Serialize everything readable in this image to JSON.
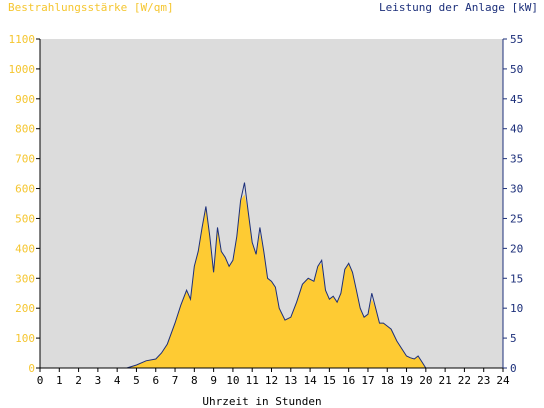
{
  "colors": {
    "plot_bg": "#dcdcdc",
    "area_fill": "#fecb33",
    "power_line": "#1c2f7a",
    "left_axis_text": "#f5c630",
    "right_axis_text": "#1c2f7a"
  },
  "chart_data": {
    "type": "area",
    "title_left": "Bestrahlungsstärke [W/qm]",
    "title_right": "Leistung der Anlage [kW]",
    "xlabel": "Uhrzeit in Stunden",
    "xlim": [
      0,
      24
    ],
    "ylim_left": [
      0,
      1100
    ],
    "ylim_right": [
      0,
      55
    ],
    "x_ticks": [
      "0",
      "1",
      "2",
      "3",
      "4",
      "5",
      "6",
      "7",
      "8",
      "9",
      "10",
      "11",
      "12",
      "13",
      "14",
      "15",
      "16",
      "17",
      "18",
      "19",
      "20",
      "21",
      "22",
      "23",
      "24"
    ],
    "y_left_ticks": [
      "0",
      "100",
      "200",
      "300",
      "400",
      "500",
      "600",
      "700",
      "800",
      "900",
      "1000",
      "1100"
    ],
    "y_right_ticks": [
      "0",
      "5",
      "10",
      "15",
      "20",
      "25",
      "30",
      "35",
      "40",
      "45",
      "50",
      "55"
    ],
    "grid": false,
    "series": [
      {
        "name": "Bestrahlungsstärke",
        "axis": "left",
        "x": [
          0,
          4.5,
          5,
          5.5,
          6,
          6.3,
          6.6,
          7,
          7.3,
          7.6,
          7.8,
          8,
          8.2,
          8.4,
          8.6,
          8.8,
          9,
          9.2,
          9.4,
          9.6,
          9.8,
          10,
          10.2,
          10.4,
          10.6,
          10.8,
          11,
          11.2,
          11.4,
          11.6,
          11.8,
          12,
          12.2,
          12.4,
          12.7,
          13,
          13.3,
          13.6,
          13.9,
          14.2,
          14.4,
          14.6,
          14.8,
          15,
          15.2,
          15.4,
          15.6,
          15.8,
          16,
          16.2,
          16.4,
          16.6,
          16.8,
          17,
          17.2,
          17.4,
          17.6,
          17.8,
          18,
          18.2,
          18.5,
          18.8,
          19,
          19.2,
          19.4,
          19.6,
          19.8,
          20,
          20.2,
          24
        ],
        "y": [
          0,
          0,
          10,
          25,
          30,
          50,
          80,
          150,
          210,
          260,
          230,
          340,
          390,
          470,
          530,
          440,
          320,
          470,
          390,
          370,
          340,
          360,
          440,
          560,
          580,
          520,
          420,
          380,
          450,
          390,
          300,
          290,
          270,
          200,
          160,
          170,
          220,
          280,
          300,
          290,
          340,
          350,
          260,
          230,
          240,
          220,
          250,
          330,
          350,
          320,
          260,
          200,
          170,
          180,
          230,
          200,
          150,
          150,
          140,
          130,
          90,
          60,
          40,
          35,
          30,
          40,
          20,
          0,
          0,
          0
        ]
      },
      {
        "name": "Leistung der Anlage",
        "axis": "right",
        "x": [
          0,
          4.5,
          5,
          5.5,
          6,
          6.3,
          6.6,
          7,
          7.3,
          7.6,
          7.8,
          8,
          8.2,
          8.4,
          8.6,
          8.8,
          9,
          9.2,
          9.4,
          9.6,
          9.8,
          10,
          10.2,
          10.4,
          10.6,
          10.8,
          11,
          11.2,
          11.4,
          11.6,
          11.8,
          12,
          12.2,
          12.4,
          12.7,
          13,
          13.3,
          13.6,
          13.9,
          14.2,
          14.4,
          14.6,
          14.8,
          15,
          15.2,
          15.4,
          15.6,
          15.8,
          16,
          16.2,
          16.4,
          16.6,
          16.8,
          17,
          17.2,
          17.4,
          17.6,
          17.8,
          18,
          18.2,
          18.5,
          18.8,
          19,
          19.2,
          19.4,
          19.6,
          19.8,
          20,
          20.2,
          24
        ],
        "y": [
          0,
          0,
          0.5,
          1.2,
          1.5,
          2.5,
          4,
          7.5,
          10.5,
          13,
          11.5,
          17,
          19.5,
          23.5,
          27,
          22,
          16,
          23.5,
          19.5,
          18.5,
          17,
          18,
          22,
          28,
          31,
          26,
          21,
          19,
          23.5,
          19.5,
          15,
          14.5,
          13.5,
          10,
          8,
          8.5,
          11,
          14,
          15,
          14.5,
          17,
          18,
          13,
          11.5,
          12,
          11,
          12.5,
          16.5,
          17.5,
          16,
          13,
          10,
          8.5,
          9,
          12.5,
          10,
          7.5,
          7.5,
          7,
          6.5,
          4.5,
          3,
          2,
          1.7,
          1.5,
          2,
          1,
          0,
          0,
          0
        ]
      }
    ]
  }
}
